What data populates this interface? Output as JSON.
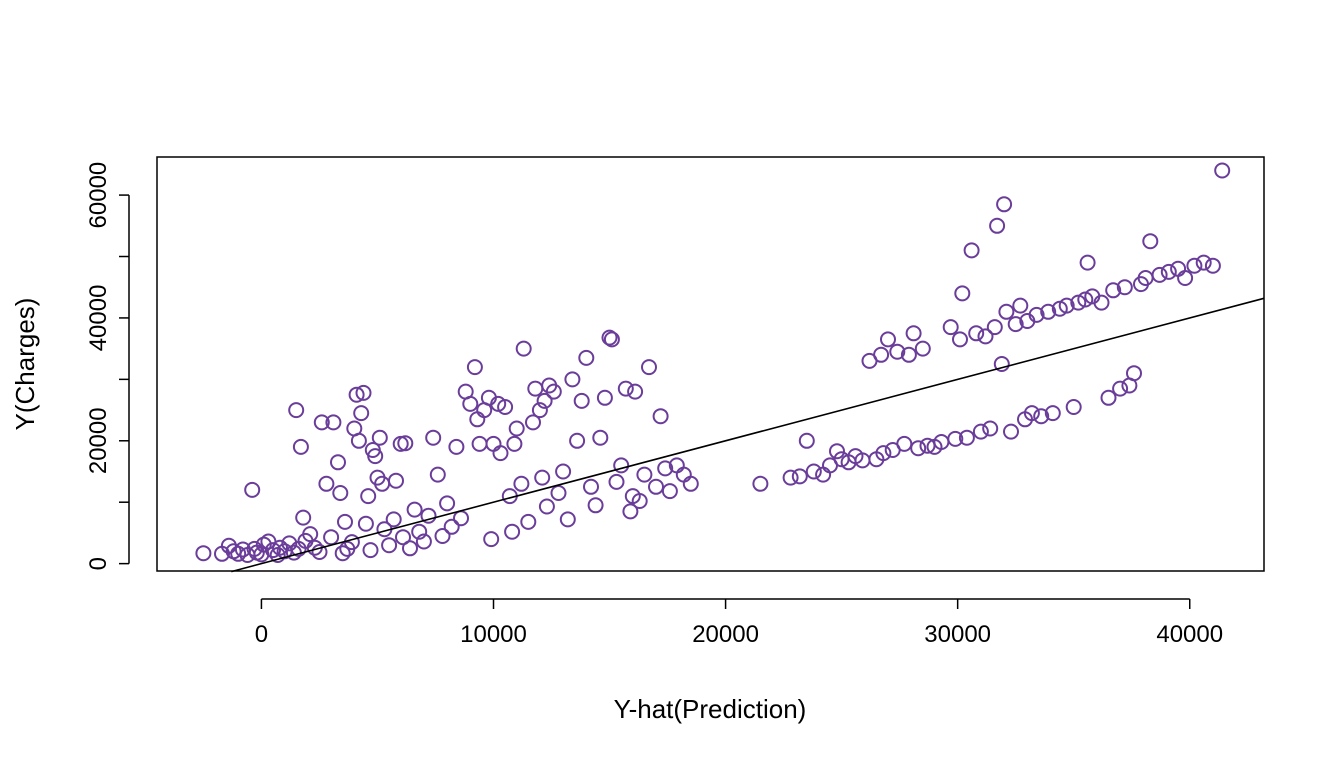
{
  "chart_data": {
    "type": "scatter",
    "title": "",
    "xlabel": "Y-hat(Prediction)",
    "ylabel": "Y(Charges)",
    "xlim": [
      -4500,
      43200
    ],
    "ylim": [
      -1200,
      66200
    ],
    "xticks": [
      0,
      10000,
      20000,
      30000,
      40000
    ],
    "xtick_labels": [
      "0",
      "10000",
      "20000",
      "30000",
      "40000"
    ],
    "yticks": [
      0,
      20000,
      40000,
      60000
    ],
    "ytick_labels": [
      "0",
      "20000",
      "40000",
      "60000"
    ],
    "yticks_minor": [
      10000,
      30000,
      50000
    ],
    "grid": false,
    "legend": "none",
    "point_color": "#6A3D9A",
    "line_color": "#000000",
    "reference_line": {
      "type": "y=x",
      "from": [
        -1300,
        -1300
      ],
      "to": [
        43200,
        43200
      ]
    },
    "series": [
      {
        "marker": "open-circle",
        "points": [
          [
            -2500,
            1700
          ],
          [
            -1700,
            1600
          ],
          [
            -1400,
            2900
          ],
          [
            -1200,
            2000
          ],
          [
            -1000,
            1600
          ],
          [
            -800,
            2300
          ],
          [
            -600,
            1400
          ],
          [
            -400,
            12000
          ],
          [
            -300,
            2400
          ],
          [
            -200,
            1800
          ],
          [
            0,
            1500
          ],
          [
            100,
            3100
          ],
          [
            300,
            3600
          ],
          [
            500,
            2200
          ],
          [
            700,
            1400
          ],
          [
            800,
            2600
          ],
          [
            1000,
            2000
          ],
          [
            1200,
            3300
          ],
          [
            1400,
            1800
          ],
          [
            1600,
            2400
          ],
          [
            1500,
            25000
          ],
          [
            1700,
            19000
          ],
          [
            1800,
            7500
          ],
          [
            1900,
            3700
          ],
          [
            2100,
            4800
          ],
          [
            2300,
            2600
          ],
          [
            2500,
            1900
          ],
          [
            2600,
            23000
          ],
          [
            2800,
            13000
          ],
          [
            3000,
            4300
          ],
          [
            3100,
            23000
          ],
          [
            3300,
            16500
          ],
          [
            3400,
            11500
          ],
          [
            3500,
            1700
          ],
          [
            3600,
            6800
          ],
          [
            3700,
            2400
          ],
          [
            3900,
            3500
          ],
          [
            4000,
            22000
          ],
          [
            4100,
            27500
          ],
          [
            4200,
            20000
          ],
          [
            4300,
            24500
          ],
          [
            4400,
            27800
          ],
          [
            4500,
            6500
          ],
          [
            4600,
            11000
          ],
          [
            4700,
            2200
          ],
          [
            4800,
            18500
          ],
          [
            4900,
            17500
          ],
          [
            5000,
            14000
          ],
          [
            5100,
            20500
          ],
          [
            5200,
            13000
          ],
          [
            5300,
            5600
          ],
          [
            5500,
            3000
          ],
          [
            5700,
            7200
          ],
          [
            5800,
            13500
          ],
          [
            6000,
            19500
          ],
          [
            6100,
            4300
          ],
          [
            6200,
            19600
          ],
          [
            6400,
            2500
          ],
          [
            6600,
            8800
          ],
          [
            6800,
            5200
          ],
          [
            7000,
            3600
          ],
          [
            7200,
            7800
          ],
          [
            7400,
            20500
          ],
          [
            7600,
            14500
          ],
          [
            7800,
            4500
          ],
          [
            8000,
            9800
          ],
          [
            8200,
            6000
          ],
          [
            8400,
            19000
          ],
          [
            8600,
            7400
          ],
          [
            8800,
            28000
          ],
          [
            9000,
            26000
          ],
          [
            9200,
            32000
          ],
          [
            9300,
            23500
          ],
          [
            9400,
            19500
          ],
          [
            9600,
            25000
          ],
          [
            9800,
            27000
          ],
          [
            9900,
            4000
          ],
          [
            10000,
            19500
          ],
          [
            10200,
            26000
          ],
          [
            10300,
            18000
          ],
          [
            10500,
            25500
          ],
          [
            10700,
            11000
          ],
          [
            10800,
            5200
          ],
          [
            10900,
            19500
          ],
          [
            11000,
            22000
          ],
          [
            11200,
            13000
          ],
          [
            11300,
            35000
          ],
          [
            11500,
            6800
          ],
          [
            11700,
            23000
          ],
          [
            11800,
            28500
          ],
          [
            12000,
            25000
          ],
          [
            12100,
            14000
          ],
          [
            12200,
            26500
          ],
          [
            12300,
            9300
          ],
          [
            12400,
            29000
          ],
          [
            12600,
            28000
          ],
          [
            12800,
            11500
          ],
          [
            13000,
            15000
          ],
          [
            13200,
            7200
          ],
          [
            13400,
            30000
          ],
          [
            13600,
            20000
          ],
          [
            13800,
            26500
          ],
          [
            14000,
            33500
          ],
          [
            14200,
            12500
          ],
          [
            14400,
            9500
          ],
          [
            14600,
            20500
          ],
          [
            14800,
            27000
          ],
          [
            15000,
            36800
          ],
          [
            15100,
            36500
          ],
          [
            15300,
            13300
          ],
          [
            15500,
            16000
          ],
          [
            15700,
            28500
          ],
          [
            15900,
            8500
          ],
          [
            16000,
            11000
          ],
          [
            16100,
            28000
          ],
          [
            16300,
            10200
          ],
          [
            16500,
            14500
          ],
          [
            16700,
            32000
          ],
          [
            17000,
            12500
          ],
          [
            17200,
            24000
          ],
          [
            17400,
            15500
          ],
          [
            17600,
            11800
          ],
          [
            17900,
            16000
          ],
          [
            18200,
            14500
          ],
          [
            18500,
            13000
          ],
          [
            21500,
            13000
          ],
          [
            22800,
            14000
          ],
          [
            23200,
            14200
          ],
          [
            23500,
            20000
          ],
          [
            23800,
            15000
          ],
          [
            24200,
            14500
          ],
          [
            24500,
            16000
          ],
          [
            24800,
            18300
          ],
          [
            25000,
            17000
          ],
          [
            25300,
            16500
          ],
          [
            25600,
            17500
          ],
          [
            25900,
            16800
          ],
          [
            26200,
            33000
          ],
          [
            26500,
            17000
          ],
          [
            26700,
            34000
          ],
          [
            26800,
            18000
          ],
          [
            27000,
            36500
          ],
          [
            27200,
            18500
          ],
          [
            27400,
            34500
          ],
          [
            27700,
            19500
          ],
          [
            27900,
            34000
          ],
          [
            28100,
            37500
          ],
          [
            28300,
            18800
          ],
          [
            28500,
            35000
          ],
          [
            28700,
            19200
          ],
          [
            29000,
            19000
          ],
          [
            29300,
            19800
          ],
          [
            29700,
            38500
          ],
          [
            29900,
            20300
          ],
          [
            30100,
            36500
          ],
          [
            30200,
            44000
          ],
          [
            30400,
            20500
          ],
          [
            30600,
            51000
          ],
          [
            30800,
            37500
          ],
          [
            31000,
            21500
          ],
          [
            31200,
            37000
          ],
          [
            31400,
            22000
          ],
          [
            31600,
            38500
          ],
          [
            31700,
            55000
          ],
          [
            31900,
            32500
          ],
          [
            32000,
            58500
          ],
          [
            32100,
            41000
          ],
          [
            32300,
            21500
          ],
          [
            32500,
            39000
          ],
          [
            32700,
            42000
          ],
          [
            32900,
            23500
          ],
          [
            33000,
            39500
          ],
          [
            33200,
            24500
          ],
          [
            33400,
            40500
          ],
          [
            33600,
            24000
          ],
          [
            33900,
            41000
          ],
          [
            34100,
            24500
          ],
          [
            34400,
            41500
          ],
          [
            34700,
            42000
          ],
          [
            35000,
            25500
          ],
          [
            35200,
            42500
          ],
          [
            35500,
            43000
          ],
          [
            35600,
            49000
          ],
          [
            35800,
            43500
          ],
          [
            36200,
            42500
          ],
          [
            36500,
            27000
          ],
          [
            36700,
            44500
          ],
          [
            37000,
            28500
          ],
          [
            37200,
            45000
          ],
          [
            37400,
            29000
          ],
          [
            37600,
            31000
          ],
          [
            37900,
            45500
          ],
          [
            38100,
            46500
          ],
          [
            38300,
            52500
          ],
          [
            38700,
            47000
          ],
          [
            39100,
            47500
          ],
          [
            39500,
            48000
          ],
          [
            39800,
            46500
          ],
          [
            40200,
            48500
          ],
          [
            40600,
            49000
          ],
          [
            41000,
            48500
          ],
          [
            41400,
            64000
          ]
        ]
      }
    ]
  }
}
